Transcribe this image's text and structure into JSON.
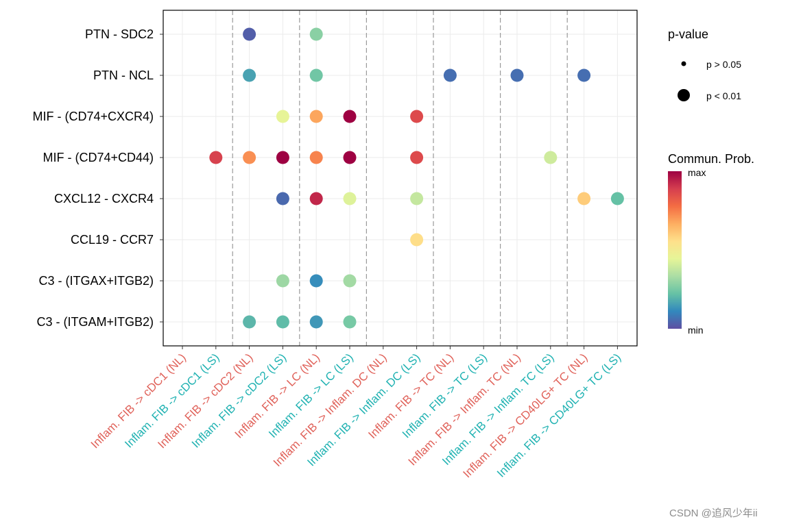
{
  "chart_data": {
    "type": "scatter",
    "title": "",
    "y_categories": [
      "PTN - SDC2",
      "PTN - NCL",
      "MIF - (CD74+CXCR4)",
      "MIF - (CD74+CD44)",
      "CXCL12 - CXCR4",
      "CCL19 - CCR7",
      "C3 - (ITGAX+ITGB2)",
      "C3 - (ITGAM+ITGB2)"
    ],
    "x_categories": [
      {
        "label": "Inflam. FIB -> cDC1 (NL)",
        "color": "#e0625a"
      },
      {
        "label": "Inflam. FIB -> cDC1 (LS)",
        "color": "#20b2b2"
      },
      {
        "label": "Inflam. FIB -> cDC2 (NL)",
        "color": "#e0625a"
      },
      {
        "label": "Inflam. FIB -> cDC2 (LS)",
        "color": "#20b2b2"
      },
      {
        "label": "Inflam. FIB -> LC (NL)",
        "color": "#e0625a"
      },
      {
        "label": "Inflam. FIB -> LC (LS)",
        "color": "#20b2b2"
      },
      {
        "label": "Inflam. FIB -> Inflam. DC (NL)",
        "color": "#e0625a"
      },
      {
        "label": "Inflam. FIB -> Inflam. DC (LS)",
        "color": "#20b2b2"
      },
      {
        "label": "Inflam. FIB -> TC (NL)",
        "color": "#e0625a"
      },
      {
        "label": "Inflam. FIB -> TC (LS)",
        "color": "#20b2b2"
      },
      {
        "label": "Inflam. FIB -> Inflam. TC (NL)",
        "color": "#e0625a"
      },
      {
        "label": "Inflam. FIB -> Inflam. TC (LS)",
        "color": "#20b2b2"
      },
      {
        "label": "Inflam. FIB -> CD40LG+ TC (NL)",
        "color": "#e0625a"
      },
      {
        "label": "Inflam. FIB -> CD40LG+ TC (LS)",
        "color": "#20b2b2"
      }
    ],
    "points": [
      {
        "x": "Inflam. FIB -> cDC2 (NL)",
        "y": "PTN - SDC2",
        "prob": 0.03,
        "pvalue": "p < 0.01"
      },
      {
        "x": "Inflam. FIB -> LC (NL)",
        "y": "PTN - SDC2",
        "prob": 0.28,
        "pvalue": "p < 0.01"
      },
      {
        "x": "Inflam. FIB -> cDC2 (NL)",
        "y": "PTN - NCL",
        "prob": 0.16,
        "pvalue": "p < 0.01"
      },
      {
        "x": "Inflam. FIB -> LC (NL)",
        "y": "PTN - NCL",
        "prob": 0.24,
        "pvalue": "p < 0.01"
      },
      {
        "x": "Inflam. FIB -> TC (NL)",
        "y": "PTN - NCL",
        "prob": 0.06,
        "pvalue": "p < 0.01"
      },
      {
        "x": "Inflam. FIB -> Inflam. TC (NL)",
        "y": "PTN - NCL",
        "prob": 0.06,
        "pvalue": "p < 0.01"
      },
      {
        "x": "Inflam. FIB -> CD40LG+ TC (NL)",
        "y": "PTN - NCL",
        "prob": 0.06,
        "pvalue": "p < 0.01"
      },
      {
        "x": "Inflam. FIB -> cDC2 (LS)",
        "y": "MIF - (CD74+CXCR4)",
        "prob": 0.45,
        "pvalue": "p < 0.01"
      },
      {
        "x": "Inflam. FIB -> LC (NL)",
        "y": "MIF - (CD74+CXCR4)",
        "prob": 0.68,
        "pvalue": "p < 0.01"
      },
      {
        "x": "Inflam. FIB -> LC (LS)",
        "y": "MIF - (CD74+CXCR4)",
        "prob": 1.0,
        "pvalue": "p < 0.01"
      },
      {
        "x": "Inflam. FIB -> Inflam. DC (LS)",
        "y": "MIF - (CD74+CXCR4)",
        "prob": 0.86,
        "pvalue": "p < 0.01"
      },
      {
        "x": "Inflam. FIB -> cDC1 (LS)",
        "y": "MIF - (CD74+CD44)",
        "prob": 0.88,
        "pvalue": "p < 0.01"
      },
      {
        "x": "Inflam. FIB -> cDC2 (NL)",
        "y": "MIF - (CD74+CD44)",
        "prob": 0.72,
        "pvalue": "p < 0.01"
      },
      {
        "x": "Inflam. FIB -> cDC2 (LS)",
        "y": "MIF - (CD74+CD44)",
        "prob": 1.0,
        "pvalue": "p < 0.01"
      },
      {
        "x": "Inflam. FIB -> LC (NL)",
        "y": "MIF - (CD74+CD44)",
        "prob": 0.74,
        "pvalue": "p < 0.01"
      },
      {
        "x": "Inflam. FIB -> LC (LS)",
        "y": "MIF - (CD74+CD44)",
        "prob": 1.0,
        "pvalue": "p < 0.01"
      },
      {
        "x": "Inflam. FIB -> Inflam. DC (LS)",
        "y": "MIF - (CD74+CD44)",
        "prob": 0.86,
        "pvalue": "p < 0.01"
      },
      {
        "x": "Inflam. FIB -> Inflam. TC (LS)",
        "y": "MIF - (CD74+CD44)",
        "prob": 0.4,
        "pvalue": "p < 0.01"
      },
      {
        "x": "Inflam. FIB -> cDC2 (LS)",
        "y": "CXCL12 - CXCR4",
        "prob": 0.05,
        "pvalue": "p < 0.01"
      },
      {
        "x": "Inflam. FIB -> LC (NL)",
        "y": "CXCL12 - CXCR4",
        "prob": 0.93,
        "pvalue": "p < 0.01"
      },
      {
        "x": "Inflam. FIB -> LC (LS)",
        "y": "CXCL12 - CXCR4",
        "prob": 0.43,
        "pvalue": "p < 0.01"
      },
      {
        "x": "Inflam. FIB -> Inflam. DC (LS)",
        "y": "CXCL12 - CXCR4",
        "prob": 0.38,
        "pvalue": "p < 0.01"
      },
      {
        "x": "Inflam. FIB -> CD40LG+ TC (NL)",
        "y": "CXCL12 - CXCR4",
        "prob": 0.6,
        "pvalue": "p < 0.01"
      },
      {
        "x": "Inflam. FIB -> CD40LG+ TC (LS)",
        "y": "CXCL12 - CXCR4",
        "prob": 0.22,
        "pvalue": "p < 0.01"
      },
      {
        "x": "Inflam. FIB -> Inflam. DC (LS)",
        "y": "CCL19 - CCR7",
        "prob": 0.56,
        "pvalue": "p < 0.01"
      },
      {
        "x": "Inflam. FIB -> cDC2 (LS)",
        "y": "C3 - (ITGAX+ITGB2)",
        "prob": 0.31,
        "pvalue": "p < 0.01"
      },
      {
        "x": "Inflam. FIB -> LC (NL)",
        "y": "C3 - (ITGAX+ITGB2)",
        "prob": 0.12,
        "pvalue": "p < 0.01"
      },
      {
        "x": "Inflam. FIB -> LC (LS)",
        "y": "C3 - (ITGAX+ITGB2)",
        "prob": 0.32,
        "pvalue": "p < 0.01"
      },
      {
        "x": "Inflam. FIB -> cDC2 (NL)",
        "y": "C3 - (ITGAM+ITGB2)",
        "prob": 0.2,
        "pvalue": "p < 0.01"
      },
      {
        "x": "Inflam. FIB -> cDC2 (LS)",
        "y": "C3 - (ITGAM+ITGB2)",
        "prob": 0.21,
        "pvalue": "p < 0.01"
      },
      {
        "x": "Inflam. FIB -> LC (NL)",
        "y": "C3 - (ITGAM+ITGB2)",
        "prob": 0.14,
        "pvalue": "p < 0.01"
      },
      {
        "x": "Inflam. FIB -> LC (LS)",
        "y": "C3 - (ITGAM+ITGB2)",
        "prob": 0.25,
        "pvalue": "p < 0.01"
      }
    ],
    "legend_pvalue": {
      "title": "p-value",
      "items": [
        "p > 0.05",
        "p < 0.01"
      ]
    },
    "legend_color": {
      "title": "Commun. Prob.",
      "max_label": "max",
      "min_label": "min",
      "palette": [
        "#5e4fa2",
        "#3288bd",
        "#66c2a5",
        "#abdda4",
        "#e6f598",
        "#fee08b",
        "#fdae61",
        "#f46d43",
        "#d53e4f",
        "#9e0142"
      ]
    },
    "grid": true,
    "group_separators": "dashed lines between target groups"
  },
  "watermark": "CSDN @追风少年ii"
}
